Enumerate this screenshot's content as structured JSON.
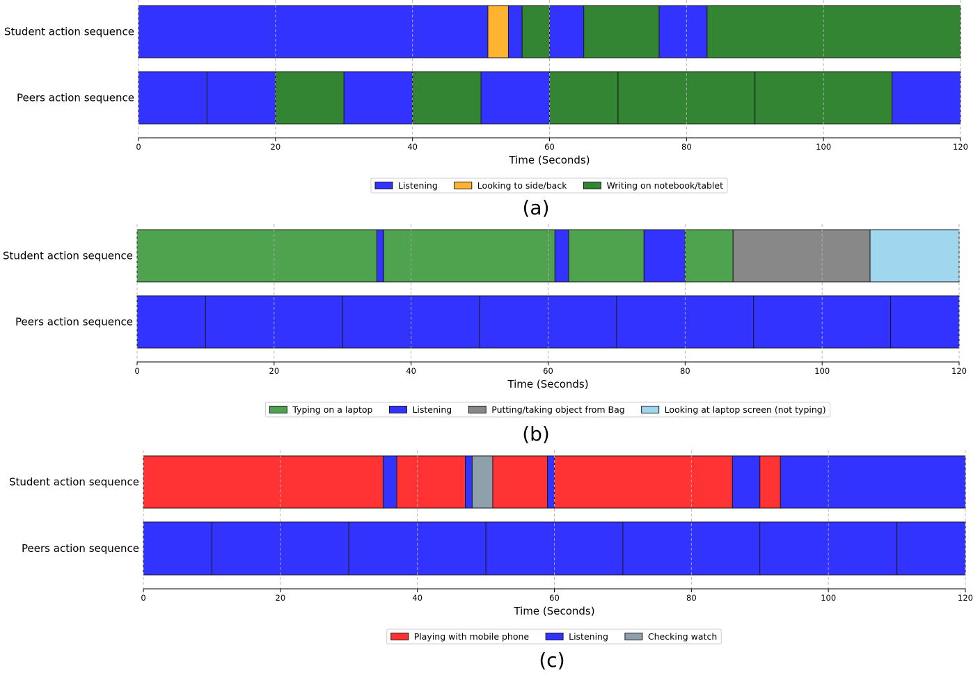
{
  "chart_data": [
    {
      "type": "timeline",
      "panel_label": "(a)",
      "xlabel": "Time (Seconds)",
      "xlim": [
        0,
        120
      ],
      "xticks": [
        0,
        20,
        40,
        60,
        80,
        100,
        120
      ],
      "legend": [
        {
          "label": "Listening",
          "color": "#3333ff"
        },
        {
          "label": "Looking to side/back",
          "color": "#ffb330"
        },
        {
          "label": "Writing on notebook/tablet",
          "color": "#338533"
        }
      ],
      "rows": [
        {
          "label": "Student action sequence",
          "segments": [
            {
              "start": 0,
              "end": 51,
              "action": "Listening"
            },
            {
              "start": 51,
              "end": 54,
              "action": "Looking to side/back"
            },
            {
              "start": 54,
              "end": 56,
              "action": "Listening"
            },
            {
              "start": 56,
              "end": 60,
              "action": "Writing on notebook/tablet"
            },
            {
              "start": 60,
              "end": 65,
              "action": "Listening"
            },
            {
              "start": 65,
              "end": 76,
              "action": "Writing on notebook/tablet"
            },
            {
              "start": 76,
              "end": 83,
              "action": "Listening"
            },
            {
              "start": 83,
              "end": 120,
              "action": "Writing on notebook/tablet"
            }
          ]
        },
        {
          "label": "Peers action sequence",
          "segments": [
            {
              "start": 0,
              "end": 10,
              "action": "Listening"
            },
            {
              "start": 10,
              "end": 20,
              "action": "Listening"
            },
            {
              "start": 20,
              "end": 30,
              "action": "Writing on notebook/tablet"
            },
            {
              "start": 30,
              "end": 40,
              "action": "Listening"
            },
            {
              "start": 40,
              "end": 50,
              "action": "Writing on notebook/tablet"
            },
            {
              "start": 50,
              "end": 60,
              "action": "Listening"
            },
            {
              "start": 60,
              "end": 70,
              "action": "Writing on notebook/tablet"
            },
            {
              "start": 70,
              "end": 90,
              "action": "Writing on notebook/tablet"
            },
            {
              "start": 90,
              "end": 110,
              "action": "Writing on notebook/tablet"
            },
            {
              "start": 110,
              "end": 120,
              "action": "Listening"
            }
          ]
        }
      ]
    },
    {
      "type": "timeline",
      "panel_label": "(b)",
      "xlabel": "Time (Seconds)",
      "xlim": [
        0,
        120
      ],
      "xticks": [
        0,
        20,
        40,
        60,
        80,
        100,
        120
      ],
      "legend": [
        {
          "label": "Typing on a laptop",
          "color": "#4fa34f"
        },
        {
          "label": "Listening",
          "color": "#3333ff"
        },
        {
          "label": "Putting/taking object from Bag",
          "color": "#888888"
        },
        {
          "label": "Looking at laptop screen (not typing)",
          "color": "#a0d6ee"
        }
      ],
      "rows": [
        {
          "label": "Student action sequence",
          "segments": [
            {
              "start": 0,
              "end": 35,
              "action": "Typing on a laptop"
            },
            {
              "start": 35,
              "end": 36,
              "action": "Listening"
            },
            {
              "start": 36,
              "end": 61,
              "action": "Typing on a laptop"
            },
            {
              "start": 61,
              "end": 63,
              "action": "Listening"
            },
            {
              "start": 63,
              "end": 74,
              "action": "Typing on a laptop"
            },
            {
              "start": 74,
              "end": 80,
              "action": "Listening"
            },
            {
              "start": 80,
              "end": 87,
              "action": "Typing on a laptop"
            },
            {
              "start": 87,
              "end": 107,
              "action": "Putting/taking object from Bag"
            },
            {
              "start": 107,
              "end": 120,
              "action": "Looking at laptop screen (not typing)"
            }
          ]
        },
        {
          "label": "Peers action sequence",
          "segments": [
            {
              "start": 0,
              "end": 10,
              "action": "Listening"
            },
            {
              "start": 10,
              "end": 30,
              "action": "Listening"
            },
            {
              "start": 30,
              "end": 50,
              "action": "Listening"
            },
            {
              "start": 50,
              "end": 70,
              "action": "Listening"
            },
            {
              "start": 70,
              "end": 90,
              "action": "Listening"
            },
            {
              "start": 90,
              "end": 110,
              "action": "Listening"
            },
            {
              "start": 110,
              "end": 120,
              "action": "Listening"
            }
          ]
        }
      ]
    },
    {
      "type": "timeline",
      "panel_label": "(c)",
      "xlabel": "Time (Seconds)",
      "xlim": [
        0,
        120
      ],
      "xticks": [
        0,
        20,
        40,
        60,
        80,
        100,
        120
      ],
      "legend": [
        {
          "label": "Playing with mobile phone",
          "color": "#ff3333"
        },
        {
          "label": "Listening",
          "color": "#3333ff"
        },
        {
          "label": "Checking watch",
          "color": "#8fa0ad"
        }
      ],
      "rows": [
        {
          "label": "Student action sequence",
          "segments": [
            {
              "start": 0,
              "end": 35,
              "action": "Playing with mobile phone"
            },
            {
              "start": 35,
              "end": 37,
              "action": "Listening"
            },
            {
              "start": 37,
              "end": 47,
              "action": "Playing with mobile phone"
            },
            {
              "start": 47,
              "end": 48,
              "action": "Listening"
            },
            {
              "start": 48,
              "end": 51,
              "action": "Checking watch"
            },
            {
              "start": 51,
              "end": 59,
              "action": "Playing with mobile phone"
            },
            {
              "start": 59,
              "end": 60,
              "action": "Listening"
            },
            {
              "start": 60,
              "end": 86,
              "action": "Playing with mobile phone"
            },
            {
              "start": 86,
              "end": 90,
              "action": "Listening"
            },
            {
              "start": 90,
              "end": 93,
              "action": "Playing with mobile phone"
            },
            {
              "start": 93,
              "end": 120,
              "action": "Listening"
            }
          ]
        },
        {
          "label": "Peers action sequence",
          "segments": [
            {
              "start": 0,
              "end": 10,
              "action": "Listening"
            },
            {
              "start": 10,
              "end": 30,
              "action": "Listening"
            },
            {
              "start": 30,
              "end": 50,
              "action": "Listening"
            },
            {
              "start": 50,
              "end": 70,
              "action": "Listening"
            },
            {
              "start": 70,
              "end": 90,
              "action": "Listening"
            },
            {
              "start": 90,
              "end": 110,
              "action": "Listening"
            },
            {
              "start": 110,
              "end": 120,
              "action": "Listening"
            }
          ]
        }
      ]
    }
  ]
}
